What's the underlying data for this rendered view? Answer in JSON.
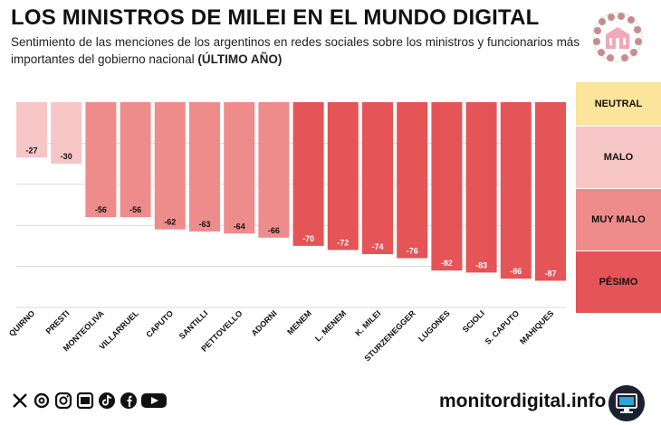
{
  "header": {
    "title": "LOS MINISTROS DE MILEI EN EL MUNDO DIGITAL",
    "subtitle": "Sentimiento de las menciones de los argentinos en redes sociales sobre los ministros y funcionarios más importantes del gobierno nacional",
    "subtitle_bold": "(ÚLTIMO AÑO)"
  },
  "chart_data": {
    "type": "bar",
    "categories": [
      "QUIRNO",
      "PRESTI",
      "MONTEOLIVA",
      "VILLARRUEL",
      "CAPUTO",
      "SANTILLI",
      "PETTOVELLO",
      "ADORNI",
      "MENEM",
      "L. MENEM",
      "K. MILEI",
      "STURZENEGGER",
      "LUGONES",
      "SCIOLI",
      "S. CAPUTO",
      "MAHIQUES"
    ],
    "values": [
      -27,
      -30,
      -56,
      -56,
      -62,
      -63,
      -64,
      -66,
      -70,
      -72,
      -74,
      -76,
      -82,
      -83,
      -86,
      -87
    ],
    "ylim": [
      -100,
      0
    ],
    "grid": true,
    "legend_position": "right",
    "bands": [
      {
        "label": "NEUTRAL",
        "from": 0,
        "to": -20,
        "color": "#fbe49b"
      },
      {
        "label": "MALO",
        "from": -20,
        "to": -50,
        "color": "#f6c6c6"
      },
      {
        "label": "MUY MALO",
        "from": -50,
        "to": -70,
        "color": "#ee8c8c"
      },
      {
        "label": "PÉSIMO",
        "from": -70,
        "to": -100,
        "color": "#e55456"
      }
    ]
  },
  "footer": {
    "brand": "monitordigital.info",
    "social_icons": [
      "x-icon",
      "threads-icon",
      "instagram-icon",
      "website-icon",
      "tiktok-icon",
      "facebook-icon",
      "youtube-icon"
    ]
  }
}
